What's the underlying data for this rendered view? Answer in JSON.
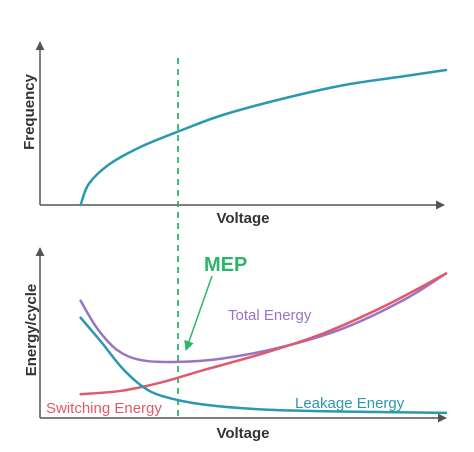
{
  "chart_data": [
    {
      "type": "line",
      "ylabel": "Frequency",
      "xlabel": "Voltage",
      "series": [
        {
          "color": "#2a98b0",
          "points": [
            [
              0.1,
              0.0
            ],
            [
              0.12,
              0.14
            ],
            [
              0.17,
              0.27
            ],
            [
              0.25,
              0.39
            ],
            [
              0.35,
              0.5
            ],
            [
              0.45,
              0.6
            ],
            [
              0.6,
              0.71
            ],
            [
              0.75,
              0.8
            ],
            [
              0.9,
              0.86
            ],
            [
              1.0,
              0.9
            ]
          ]
        }
      ],
      "reference_line": {
        "x": 0.34,
        "color": "#2db56a",
        "style": "dashed"
      }
    },
    {
      "type": "line",
      "ylabel": "Energy/cycle",
      "xlabel": "Voltage",
      "series": [
        {
          "name": "Total Energy",
          "color": "#9a74c4",
          "points": [
            [
              0.1,
              0.69
            ],
            [
              0.14,
              0.53
            ],
            [
              0.19,
              0.4
            ],
            [
              0.25,
              0.34
            ],
            [
              0.34,
              0.33
            ],
            [
              0.45,
              0.35
            ],
            [
              0.6,
              0.42
            ],
            [
              0.75,
              0.53
            ],
            [
              0.9,
              0.7
            ],
            [
              1.0,
              0.85
            ]
          ]
        },
        {
          "name": "Switching Energy",
          "color": "#e05a6a",
          "points": [
            [
              0.1,
              0.14
            ],
            [
              0.2,
              0.16
            ],
            [
              0.3,
              0.21
            ],
            [
              0.4,
              0.28
            ],
            [
              0.55,
              0.38
            ],
            [
              0.7,
              0.5
            ],
            [
              0.85,
              0.66
            ],
            [
              1.0,
              0.85
            ]
          ]
        },
        {
          "name": "Leakage Energy",
          "color": "#2a98b0",
          "points": [
            [
              0.1,
              0.59
            ],
            [
              0.15,
              0.45
            ],
            [
              0.2,
              0.3
            ],
            [
              0.25,
              0.19
            ],
            [
              0.3,
              0.13
            ],
            [
              0.4,
              0.08
            ],
            [
              0.55,
              0.05
            ],
            [
              0.7,
              0.04
            ],
            [
              0.85,
              0.035
            ],
            [
              1.0,
              0.03
            ]
          ]
        }
      ],
      "reference_line": {
        "x": 0.34,
        "color": "#2db56a",
        "style": "dashed"
      },
      "annotations": [
        {
          "text": "MEP",
          "color": "#2db56a",
          "points_to": [
            0.34,
            0.33
          ]
        }
      ]
    }
  ]
}
